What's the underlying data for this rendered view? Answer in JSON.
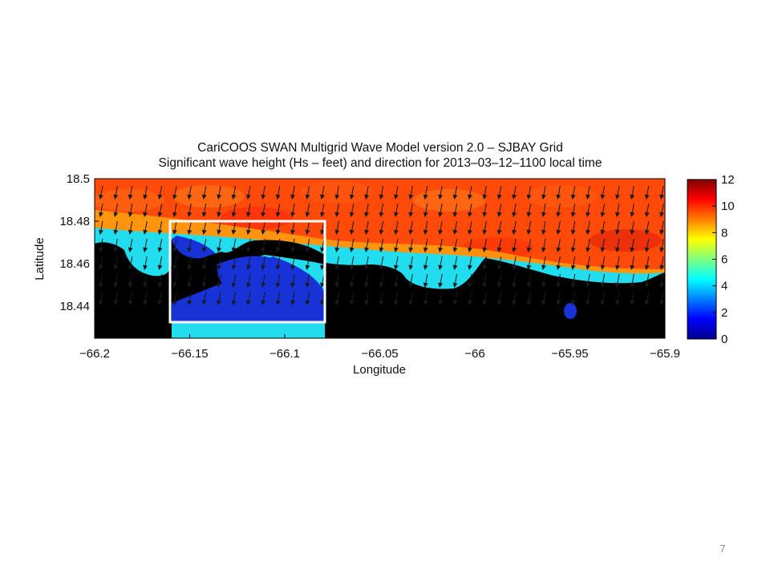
{
  "slide": {
    "page_number": "7"
  },
  "chart_data": {
    "type": "heatmap",
    "title": "CariCOOS SWAN Multigrid Wave Model version 2.0 – SJBAY Grid",
    "subtitle": "Significant wave height (Hs – feet) and direction for 2013–03–12–1100 local time",
    "xlabel": "Longitude",
    "ylabel": "Latitude",
    "xlim": [
      -66.2,
      -65.9
    ],
    "ylim": [
      18.425,
      18.5
    ],
    "x_ticks": [
      -66.2,
      -66.15,
      -66.1,
      -66.05,
      -66,
      -65.95,
      -65.9
    ],
    "x_tick_labels": [
      "−66.2",
      "−66.15",
      "−66.1",
      "−66.05",
      "−66",
      "−65.95",
      "−65.9"
    ],
    "y_ticks": [
      18.5,
      18.48,
      18.46,
      18.44
    ],
    "y_tick_labels": [
      "18.5",
      "18.48",
      "18.46",
      "18.44"
    ],
    "colorbar": {
      "range": [
        0,
        12
      ],
      "ticks": [
        0,
        2,
        4,
        6,
        8,
        10,
        12
      ],
      "tick_labels": [
        "0",
        "2",
        "4",
        "6",
        "8",
        "10",
        "12"
      ],
      "colormap": "jet",
      "land_color": "#000000"
    },
    "field_summary": {
      "offshore_wave_height_ft": 10,
      "nearshore_wave_height_ft": [
        3,
        5
      ],
      "bay_wave_height_ft": [
        0.5,
        1.5
      ],
      "wave_direction": "from north-northeast toward south-southwest"
    },
    "highlight_box": {
      "lon_range": [
        -66.155,
        -66.08
      ],
      "lat_range": [
        18.43,
        18.477
      ]
    }
  }
}
